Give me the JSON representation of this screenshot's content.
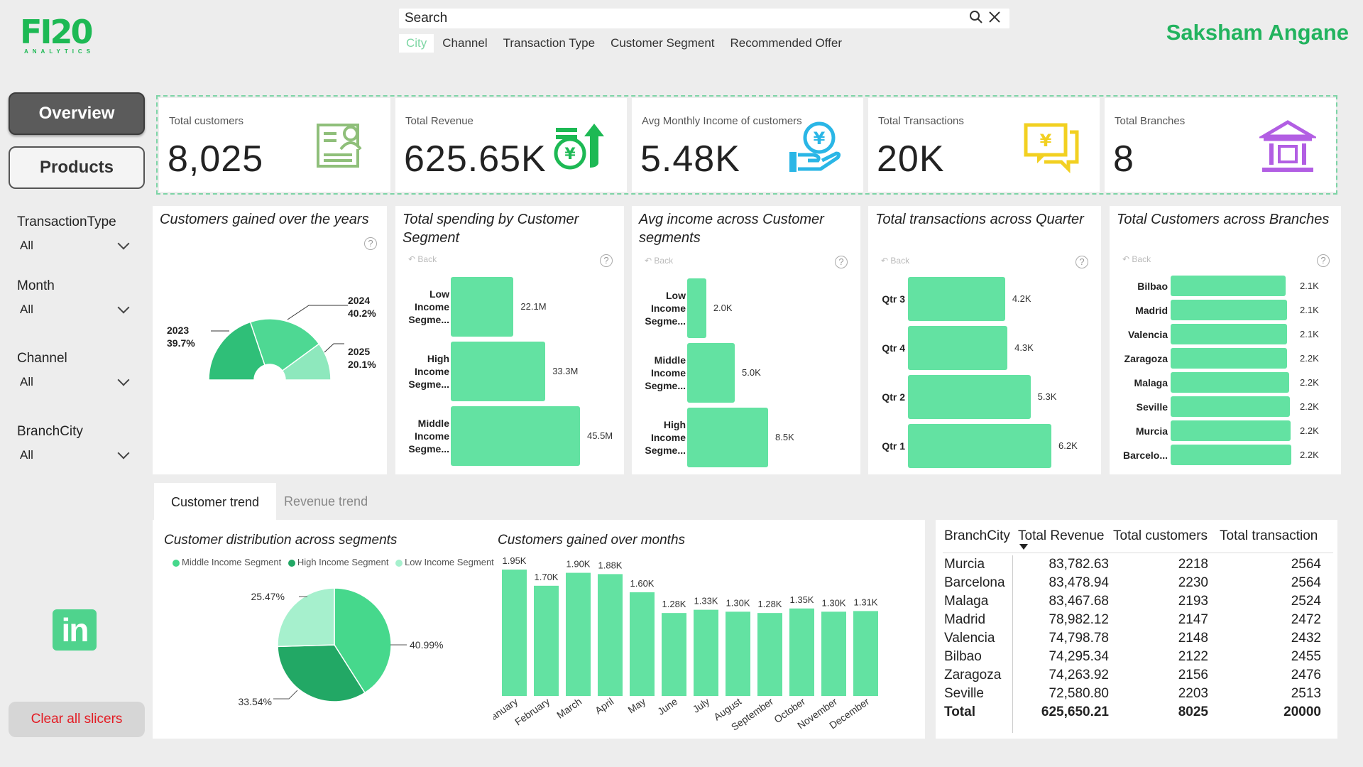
{
  "brand": {
    "logo_text": "FI20",
    "logo_sub": "ANALYTICS"
  },
  "search": {
    "placeholder": "Search"
  },
  "filter_tabs": [
    "City",
    "Channel",
    "Transaction Type",
    "Customer Segment",
    "Recommended Offer"
  ],
  "user": {
    "name": "Saksham Angane"
  },
  "nav": {
    "overview": "Overview",
    "products": "Products"
  },
  "slicers": [
    {
      "label": "TransactionType",
      "value": "All"
    },
    {
      "label": "Month",
      "value": "All"
    },
    {
      "label": "Channel",
      "value": "All"
    },
    {
      "label": "BranchCity",
      "value": "All"
    }
  ],
  "linkedin": {
    "text": "in",
    "icon": "linkedin-icon"
  },
  "clear_slicers": "Clear all slicers",
  "kpis": [
    {
      "title": "Total customers",
      "value": "8,025",
      "icon": "customer-card-icon",
      "color": "#8fbf7a"
    },
    {
      "title": "Total Revenue",
      "value": "625.65K",
      "icon": "revenue-growth-icon",
      "color": "#1db954"
    },
    {
      "title": "Avg Monthly Income of customers",
      "value": "5.48K",
      "icon": "income-hand-icon",
      "color": "#2ab6e6"
    },
    {
      "title": "Total Transactions",
      "value": "20K",
      "icon": "transaction-chat-icon",
      "color": "#f2d021"
    },
    {
      "title": "Total Branches",
      "value": "8",
      "icon": "bank-icon",
      "color": "#b25ee3"
    }
  ],
  "common": {
    "back": "Back",
    "help": "?"
  },
  "cards": {
    "years": {
      "title": "Customers gained over the years"
    },
    "spending": {
      "title": "Total spending by Customer Segment"
    },
    "income": {
      "title": "Avg income across Customer segments"
    },
    "quarter": {
      "title": "Total transactions across Quarter"
    },
    "branches": {
      "title": "Total Customers across Branches"
    }
  },
  "bottom_tabs": {
    "customer_trend": "Customer trend",
    "revenue_trend": "Revenue trend"
  },
  "table": {
    "headers": [
      "BranchCity",
      "Total Revenue",
      "Total customers",
      "Total transaction"
    ],
    "rows": [
      [
        "Murcia",
        "83,782.63",
        "2218",
        "2564"
      ],
      [
        "Barcelona",
        "83,478.94",
        "2230",
        "2564"
      ],
      [
        "Malaga",
        "83,467.68",
        "2193",
        "2524"
      ],
      [
        "Madrid",
        "78,982.12",
        "2147",
        "2472"
      ],
      [
        "Valencia",
        "74,798.78",
        "2148",
        "2432"
      ],
      [
        "Bilbao",
        "74,295.34",
        "2122",
        "2455"
      ],
      [
        "Zaragoza",
        "74,263.92",
        "2156",
        "2476"
      ],
      [
        "Seville",
        "72,580.80",
        "2203",
        "2513"
      ]
    ],
    "total": [
      "Total",
      "625,650.21",
      "8025",
      "20000"
    ]
  },
  "chart_data": [
    {
      "type": "pie",
      "title": "Customers gained over the years",
      "style": "half-donut",
      "categories": [
        "2023",
        "2024",
        "2025"
      ],
      "values": [
        39.7,
        40.2,
        20.1
      ],
      "labels": [
        "2023\n39.7%",
        "2024\n40.2%",
        "2025\n20.1%"
      ],
      "colors": [
        "#2fbf78",
        "#4ed893",
        "#8ee8bd"
      ]
    },
    {
      "type": "bar",
      "orientation": "horizontal",
      "title": "Total spending by Customer Segment",
      "categories": [
        "Low Income Segme...",
        "High Income Segme...",
        "Middle Income Segme..."
      ],
      "values": [
        22.1,
        33.3,
        45.5
      ],
      "value_labels": [
        "22.1M",
        "33.3M",
        "45.5M"
      ],
      "unit": "M",
      "xlim": [
        0,
        45.5
      ]
    },
    {
      "type": "bar",
      "orientation": "horizontal",
      "title": "Avg income across Customer segments",
      "categories": [
        "Low Income Segme...",
        "Middle Income Segme...",
        "High Income Segme..."
      ],
      "values": [
        2.0,
        5.0,
        8.5
      ],
      "value_labels": [
        "2.0K",
        "5.0K",
        "8.5K"
      ],
      "unit": "K",
      "xlim": [
        0,
        8.5
      ]
    },
    {
      "type": "bar",
      "orientation": "horizontal",
      "title": "Total transactions across Quarter",
      "categories": [
        "Qtr 3",
        "Qtr 4",
        "Qtr 2",
        "Qtr 1"
      ],
      "values": [
        4.2,
        4.3,
        5.3,
        6.2
      ],
      "value_labels": [
        "4.2K",
        "4.3K",
        "5.3K",
        "6.2K"
      ],
      "unit": "K",
      "xlim": [
        0,
        6.2
      ]
    },
    {
      "type": "bar",
      "orientation": "horizontal",
      "title": "Total Customers across Branches",
      "categories": [
        "Bilbao",
        "Madrid",
        "Valencia",
        "Zaragoza",
        "Malaga",
        "Seville",
        "Murcia",
        "Barcelo..."
      ],
      "values": [
        2122,
        2147,
        2148,
        2156,
        2193,
        2203,
        2218,
        2230
      ],
      "value_labels": [
        "2.1K",
        "2.1K",
        "2.1K",
        "2.2K",
        "2.2K",
        "2.2K",
        "2.2K",
        "2.2K"
      ],
      "xlim": [
        0,
        2230
      ]
    },
    {
      "type": "pie",
      "title": "Customer distribution across segments",
      "categories": [
        "Middle Income Segment",
        "High Income Segment",
        "Low Income Segment"
      ],
      "values": [
        40.99,
        33.54,
        25.47
      ],
      "value_labels": [
        "40.99%",
        "33.54%",
        "25.47%"
      ],
      "colors": [
        "#46d88c",
        "#22a865",
        "#a6f0cd"
      ],
      "legend": "top"
    },
    {
      "type": "bar",
      "title": "Customers gained over months",
      "categories": [
        "January",
        "February",
        "March",
        "April",
        "May",
        "June",
        "July",
        "August",
        "September",
        "October",
        "November",
        "December"
      ],
      "values": [
        1.95,
        1.7,
        1.9,
        1.88,
        1.6,
        1.28,
        1.33,
        1.3,
        1.28,
        1.35,
        1.3,
        1.31
      ],
      "value_labels": [
        "1.95K",
        "1.70K",
        "1.90K",
        "1.88K",
        "1.60K",
        "1.28K",
        "1.33K",
        "1.30K",
        "1.28K",
        "1.35K",
        "1.30K",
        "1.31K"
      ],
      "ylim": [
        0,
        1.95
      ],
      "color": "#63e2a2"
    }
  ]
}
